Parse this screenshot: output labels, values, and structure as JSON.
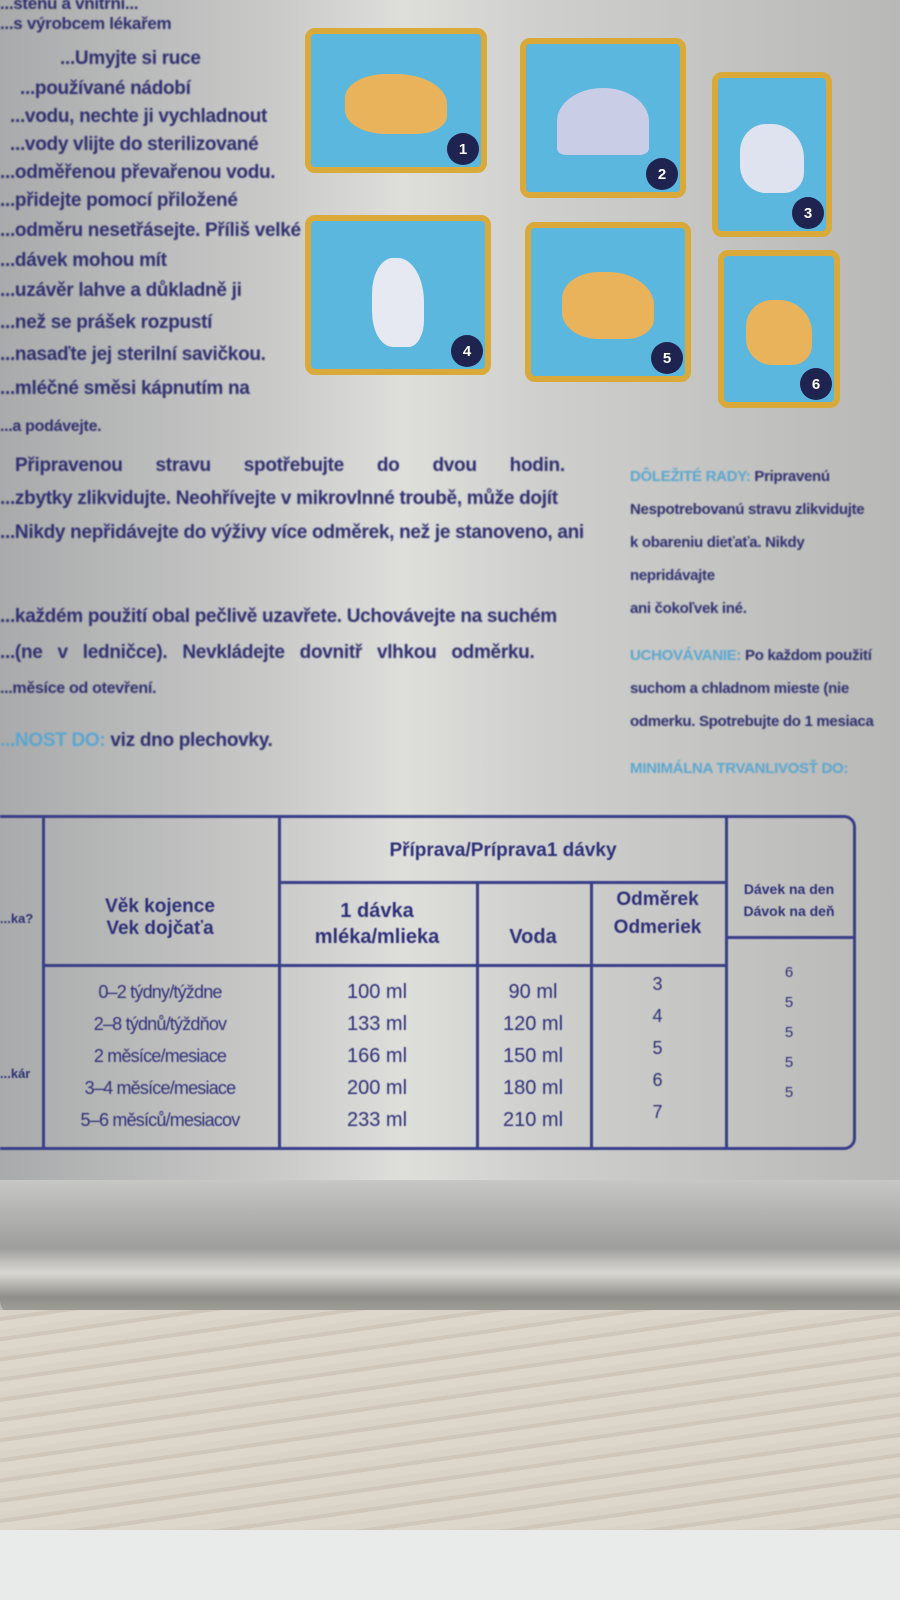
{
  "left_column_text": [
    "...stěnu a vnitřní...",
    "...s výrobcem lékařem",
    "...Umyjte si ruce",
    "...používané nádobí",
    "...vodu, nechte ji vychladnout",
    "...vody vlijte do sterilizované",
    "...odměřenou převařenou vodu.",
    "...přidejte pomocí přiložené",
    "...odměru nesetřásejte. Příliš velké",
    "...dávek mohou mít",
    "...uzávěr lahve a důkladně ji",
    "...než se prášek rozpustí",
    "...nasaďte jej sterilní savičkou.",
    "...mléčné směsi kápnutím na",
    "...a podávejte."
  ],
  "illustrations": [
    {
      "step": "1"
    },
    {
      "step": "2"
    },
    {
      "step": "3"
    },
    {
      "step": "4"
    },
    {
      "step": "5"
    },
    {
      "step": "6"
    }
  ],
  "middle_text": {
    "p1": [
      "Připravenou stravu spotřebujte do dvou hodin.",
      "...zbytky zlikvidujte. Neohřívejte v mikrovlnné troubě, může dojít",
      "...Nikdy nepřidávejte do výživy více odměrek, než je stanoveno, ani"
    ],
    "p2": [
      "...každém použití obal pečlivě uzavřete. Uchovávejte na suchém",
      "...(ne v ledničce). Nevkládejte dovnitř vlhkou odměrku.",
      "...měsíce od otevření."
    ],
    "p3_label": "...NOST DO:",
    "p3_text": "viz dno plechovky."
  },
  "right_text": {
    "label1": "DÔLEŽITÉ RADY:",
    "label1_tail": "Pripravenú",
    "lines1": [
      "Nespotrebovanú stravu zlikvidujte",
      "k obareniu dieťaťa. Nikdy nepridávajte",
      "ani čokoľvek iné."
    ],
    "label2": "UCHOVÁVANIE:",
    "label2_tail": "Po každom použití",
    "lines2": [
      "suchom a chladnom mieste (nie",
      "odmerku. Spotrebujte do 1 mesiaca"
    ],
    "label3": "MINIMÁLNA TRVANLIVOSŤ DO:"
  },
  "table": {
    "cut_col_labels": [
      "...ka?",
      "...kár"
    ],
    "age_header": [
      "Věk kojence",
      "Vek dojčaťa"
    ],
    "group_header": "Příprava/Príprava1 dávky",
    "dose_header": [
      "1 dávka",
      "mléka/mlieka"
    ],
    "water_header": "Voda",
    "scoops_header": [
      "Odměrek",
      "Odmeriek"
    ],
    "per_day_header": [
      "Dávek na den",
      "Dávok na deň"
    ],
    "ages": [
      "0–2 týdny/týždne",
      "2–8 týdnů/týždňov",
      "2 měsíce/mesiace",
      "3–4 měsíce/mesiace",
      "5–6 měsíců/mesiacov"
    ],
    "doses": [
      "100 ml",
      "133 ml",
      "166 ml",
      "200 ml",
      "233 ml"
    ],
    "water": [
      "90 ml",
      "120 ml",
      "150 ml",
      "180 ml",
      "210 ml"
    ],
    "scoops": [
      "3",
      "4",
      "5",
      "6",
      "7"
    ],
    "per_day": [
      "6",
      "5",
      "5",
      "5",
      "5"
    ]
  },
  "colors": {
    "text": "#2e2f6e",
    "accent": "#5aa6cf",
    "tile_border": "#d9a93a",
    "tile_bg": "#5bb7dd"
  }
}
